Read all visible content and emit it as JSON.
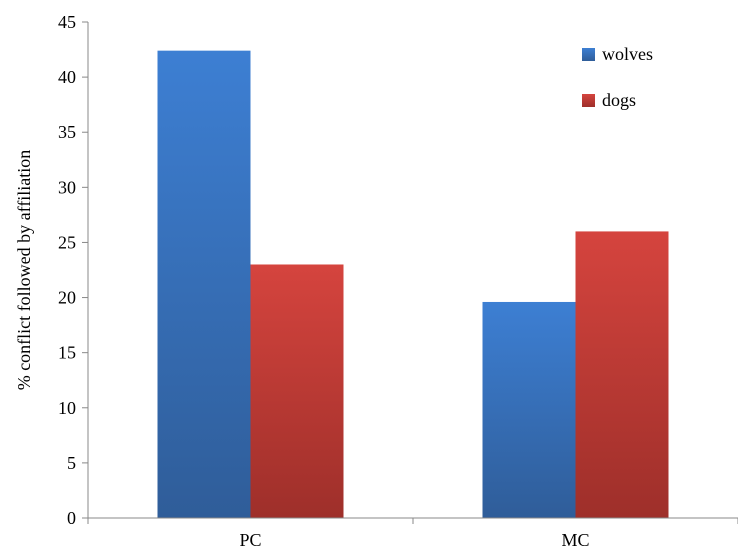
{
  "chart_data": {
    "type": "bar",
    "title": "",
    "xlabel": "",
    "ylabel": "% conflict followed by affiliation",
    "categories": [
      "PC",
      "MC"
    ],
    "series": [
      {
        "name": "wolves",
        "values": [
          42.4,
          19.6
        ],
        "color": "#3b78c9"
      },
      {
        "name": "dogs",
        "values": [
          23.0,
          26.0
        ],
        "color": "#c9403a"
      }
    ],
    "ylim": [
      0,
      45
    ],
    "yticks": [
      0,
      5,
      10,
      15,
      20,
      25,
      30,
      35,
      40,
      45
    ],
    "grid": false,
    "legend_position": "top-right"
  },
  "colors": {
    "wolves_top": "#3d7fd3",
    "wolves_bottom": "#2f5d99",
    "dogs_top": "#d5443e",
    "dogs_bottom": "#9e2f2a",
    "axis": "#888888"
  }
}
